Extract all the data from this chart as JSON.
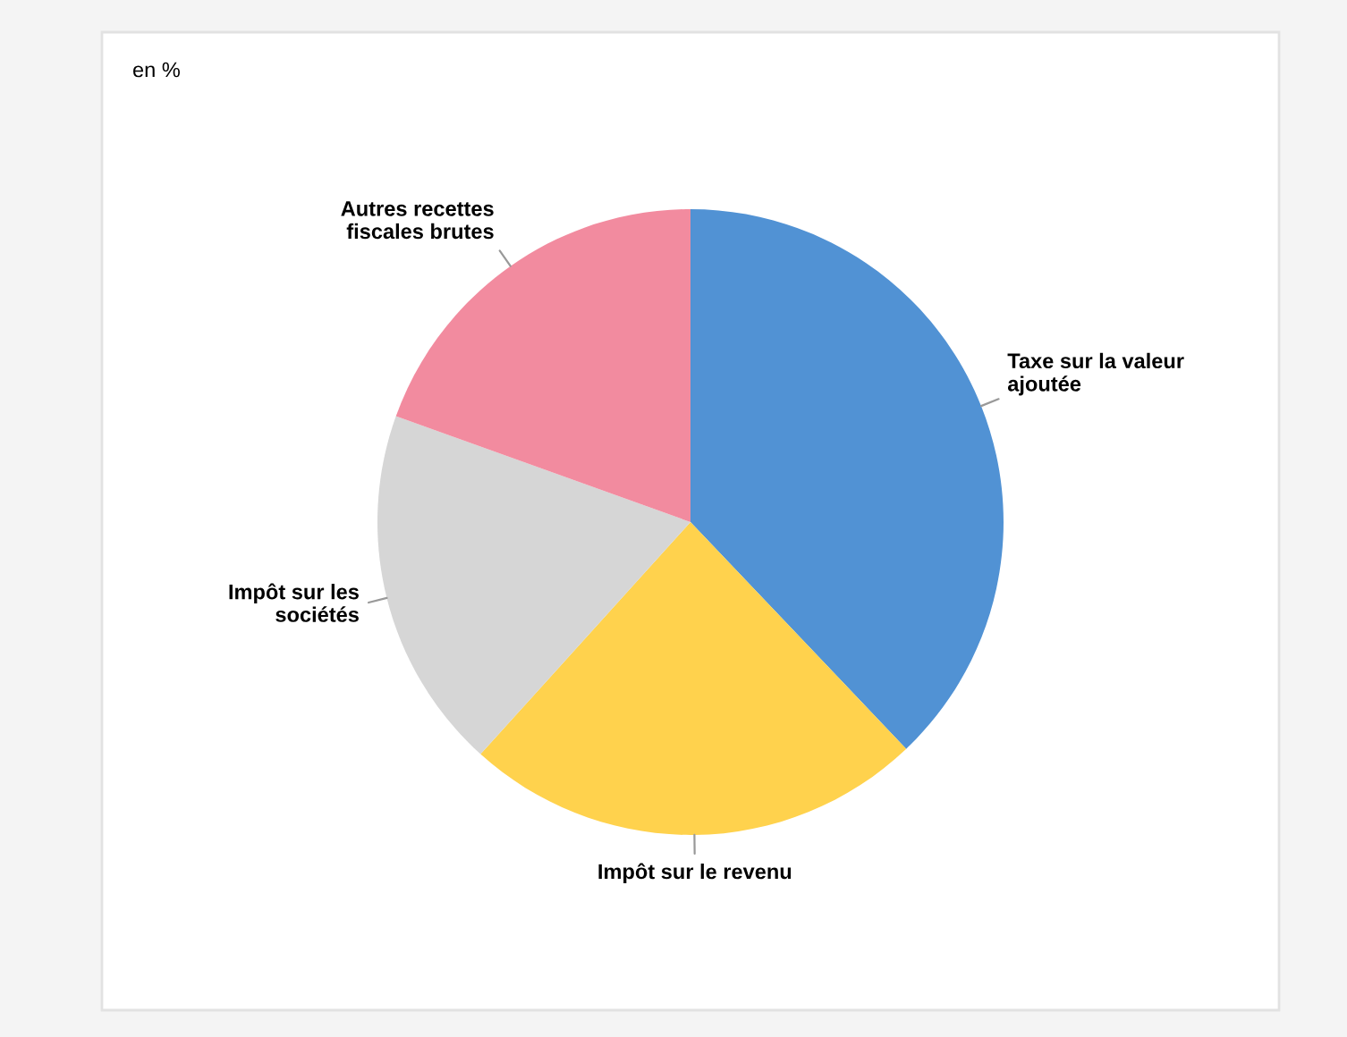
{
  "chart_data": {
    "type": "pie",
    "subtitle": "en %",
    "categories": [
      "Taxe sur la valeur\najoutée",
      "Impôt sur le revenu",
      "Impôt sur les\nsociétés",
      "Autres recettes\nfiscales brutes"
    ],
    "values": [
      37.9,
      23.8,
      18.8,
      19.5
    ],
    "colors": [
      "#5192d4",
      "#ffd24d",
      "#d6d6d6",
      "#f28b9f"
    ]
  }
}
